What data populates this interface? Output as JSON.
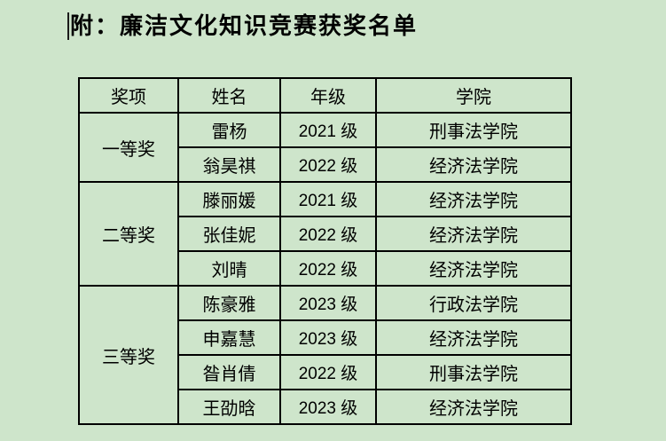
{
  "page": {
    "title": "附：廉洁文化知识竞赛获奖名单",
    "background_color": "#cee5cb",
    "border_color": "#000000",
    "text_color": "#000000"
  },
  "table": {
    "headers": [
      "奖项",
      "姓名",
      "年级",
      "学院"
    ],
    "groups": [
      {
        "award": "一等奖",
        "winners": [
          {
            "name": "雷杨",
            "grade": "2021 级",
            "college": "刑事法学院"
          },
          {
            "name": "翁昊祺",
            "grade": "2022 级",
            "college": "经济法学院"
          }
        ]
      },
      {
        "award": "二等奖",
        "winners": [
          {
            "name": "滕丽媛",
            "grade": "2021 级",
            "college": "经济法学院"
          },
          {
            "name": "张佳妮",
            "grade": "2022 级",
            "college": "经济法学院"
          },
          {
            "name": "刘晴",
            "grade": "2022 级",
            "college": "经济法学院"
          }
        ]
      },
      {
        "award": "三等奖",
        "winners": [
          {
            "name": "陈豪雅",
            "grade": "2023 级",
            "college": "行政法学院"
          },
          {
            "name": "申嘉慧",
            "grade": "2023 级",
            "college": "经济法学院"
          },
          {
            "name": "昝肖倩",
            "grade": "2022 级",
            "college": "刑事法学院"
          },
          {
            "name": "王劭晗",
            "grade": "2023 级",
            "college": "经济法学院"
          }
        ]
      }
    ]
  }
}
